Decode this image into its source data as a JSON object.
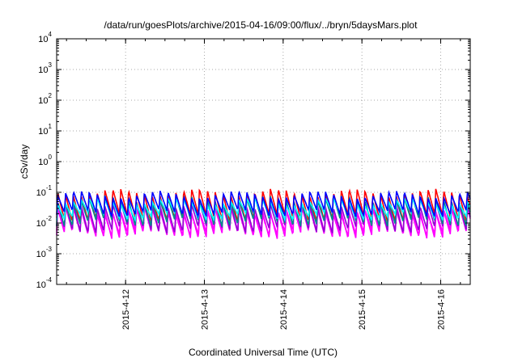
{
  "chart_data": {
    "type": "line",
    "title": "/data/run/goesPlots/archive/2015-04-16/09:00/flux/../bryn/5daysMars.plot",
    "xlabel": "Coordinated Universal Time (UTC)",
    "ylabel": "cSv/day",
    "yscale": "log",
    "ylim": [
      0.0001,
      10000
    ],
    "xlim": [
      "2015-04-11 03:00",
      "2015-04-16 09:00"
    ],
    "grid": true,
    "legend": "none",
    "y_ticks": [
      {
        "base": "10",
        "exp": "-4",
        "value": 0.0001
      },
      {
        "base": "10",
        "exp": "-3",
        "value": 0.001
      },
      {
        "base": "10",
        "exp": "-2",
        "value": 0.01
      },
      {
        "base": "10",
        "exp": "-1",
        "value": 0.1
      },
      {
        "base": "10",
        "exp": "0",
        "value": 1
      },
      {
        "base": "10",
        "exp": "1",
        "value": 10
      },
      {
        "base": "10",
        "exp": "2",
        "value": 100
      },
      {
        "base": "10",
        "exp": "3",
        "value": 1000
      },
      {
        "base": "10",
        "exp": "4",
        "value": 10000
      }
    ],
    "x_ticks": [
      "2015-4-12",
      "2015-4-13",
      "2015-4-14",
      "2015-4-15",
      "2015-4-16"
    ],
    "sawtooth_period_hours": 2.4,
    "series": [
      {
        "color": "#ff00ff",
        "peak": 0.03,
        "trough": 0.004
      },
      {
        "color": "#ff00ff",
        "peak": 0.025,
        "trough": 0.0045
      },
      {
        "color": "#9400d3",
        "peak": 0.04,
        "trough": 0.006
      },
      {
        "color": "#ff0000",
        "peak": 0.1,
        "trough": 0.014
      },
      {
        "color": "#008b8b",
        "peak": 0.06,
        "trough": 0.01
      },
      {
        "color": "#00ffff",
        "peak": 0.05,
        "trough": 0.016
      },
      {
        "color": "#0000ff",
        "peak": 0.085,
        "trough": 0.02
      }
    ]
  }
}
